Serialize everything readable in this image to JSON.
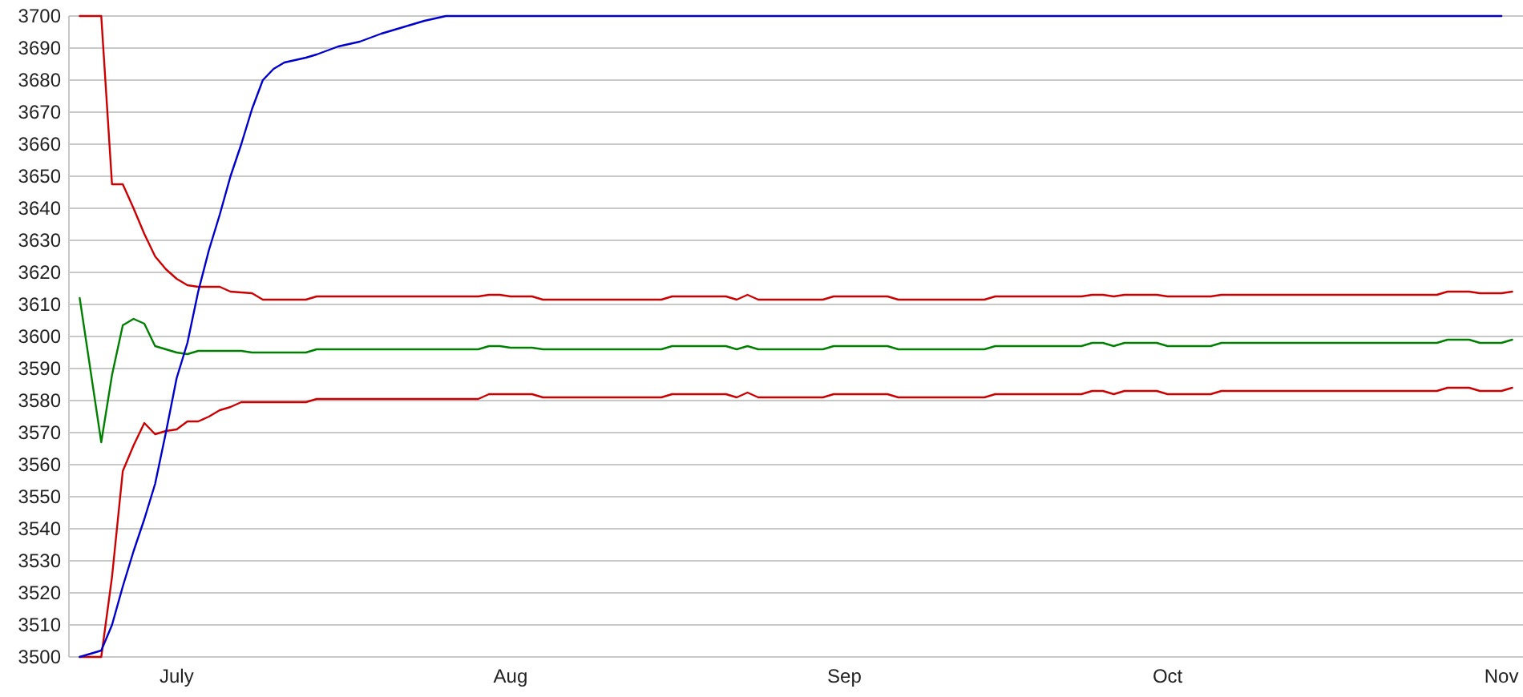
{
  "chart_data": {
    "type": "line",
    "xlim": [
      "--06-21",
      "--11-03"
    ],
    "xticks": [
      {
        "value": "--07-01",
        "label": "July"
      },
      {
        "value": "--08-01",
        "label": "Aug"
      },
      {
        "value": "--09-01",
        "label": "Sep"
      },
      {
        "value": "--10-01",
        "label": "Oct"
      },
      {
        "value": "--11-01",
        "label": "Nov"
      }
    ],
    "ylim": [
      3500,
      3700
    ],
    "yticks": [
      3500,
      3510,
      3520,
      3530,
      3540,
      3550,
      3560,
      3570,
      3580,
      3590,
      3600,
      3610,
      3620,
      3630,
      3640,
      3650,
      3660,
      3670,
      3680,
      3690,
      3700
    ],
    "grid": "y",
    "marker": "none",
    "line_style": "solid",
    "series": [
      {
        "color": "#cc0000",
        "x": [
          "--06-22",
          "--06-24",
          "--06-25",
          "--06-26",
          "--06-27",
          "--06-28",
          "--06-29",
          "--06-30",
          "--07-01",
          "--07-02",
          "--07-03",
          "--07-05",
          "--07-06",
          "--07-08",
          "--07-09",
          "--07-13",
          "--07-14",
          "--07-29",
          "--07-30",
          "--07-31",
          "--08-01",
          "--08-03",
          "--08-04",
          "--08-15",
          "--08-16",
          "--08-21",
          "--08-22",
          "--08-23",
          "--08-24",
          "--08-30",
          "--08-31",
          "--09-05",
          "--09-06",
          "--09-14",
          "--09-15",
          "--09-23",
          "--09-24",
          "--09-25",
          "--09-26",
          "--09-27",
          "--09-30",
          "--10-01",
          "--10-05",
          "--10-06",
          "--10-26",
          "--10-27",
          "--10-29",
          "--10-30",
          "--11-01",
          "--11-02"
        ],
        "values": [
          3700,
          3700,
          3647.5,
          3647.5,
          3640,
          3632,
          3625,
          3621,
          3618,
          3616,
          3615.5,
          3615.5,
          3614,
          3613.5,
          3611.5,
          3611.5,
          3612.5,
          3612.5,
          3613,
          3613,
          3612.5,
          3612.5,
          3611.5,
          3611.5,
          3612.5,
          3612.5,
          3611.5,
          3613,
          3611.5,
          3611.5,
          3612.5,
          3612.5,
          3611.5,
          3611.5,
          3612.5,
          3612.5,
          3613,
          3613,
          3612.5,
          3613,
          3613,
          3612.5,
          3612.5,
          3613,
          3613,
          3614,
          3614,
          3613.5,
          3613.5,
          3614
        ]
      },
      {
        "color": "#008000",
        "x": [
          "--06-22",
          "--06-24",
          "--06-25",
          "--06-26",
          "--06-27",
          "--06-28",
          "--06-29",
          "--06-30",
          "--07-01",
          "--07-02",
          "--07-03",
          "--07-07",
          "--07-08",
          "--07-13",
          "--07-14",
          "--07-29",
          "--07-30",
          "--07-31",
          "--08-01",
          "--08-03",
          "--08-04",
          "--08-15",
          "--08-16",
          "--08-21",
          "--08-22",
          "--08-23",
          "--08-24",
          "--08-30",
          "--08-31",
          "--09-05",
          "--09-06",
          "--09-14",
          "--09-15",
          "--09-23",
          "--09-24",
          "--09-25",
          "--09-26",
          "--09-27",
          "--09-30",
          "--10-01",
          "--10-05",
          "--10-06",
          "--10-26",
          "--10-27",
          "--10-29",
          "--10-30",
          "--11-01",
          "--11-02"
        ],
        "values": [
          3612,
          3567,
          3588,
          3603.5,
          3605.5,
          3604,
          3597,
          3596,
          3595,
          3594.5,
          3595.5,
          3595.5,
          3595,
          3595,
          3596,
          3596,
          3597,
          3597,
          3596.5,
          3596.5,
          3596,
          3596,
          3597,
          3597,
          3596,
          3597,
          3596,
          3596,
          3597,
          3597,
          3596,
          3596,
          3597,
          3597,
          3598,
          3598,
          3597,
          3598,
          3598,
          3597,
          3597,
          3598,
          3598,
          3599,
          3599,
          3598,
          3598,
          3599
        ]
      },
      {
        "color": "#cc0000",
        "x": [
          "--06-22",
          "--06-24",
          "--06-25",
          "--06-26",
          "--06-27",
          "--06-28",
          "--06-29",
          "--06-30",
          "--07-01",
          "--07-02",
          "--07-03",
          "--07-04",
          "--07-05",
          "--07-06",
          "--07-07",
          "--07-13",
          "--07-14",
          "--07-29",
          "--07-30",
          "--07-31",
          "--08-01",
          "--08-03",
          "--08-04",
          "--08-15",
          "--08-16",
          "--08-21",
          "--08-22",
          "--08-23",
          "--08-24",
          "--08-30",
          "--08-31",
          "--09-05",
          "--09-06",
          "--09-14",
          "--09-15",
          "--09-23",
          "--09-24",
          "--09-25",
          "--09-26",
          "--09-27",
          "--09-30",
          "--10-01",
          "--10-05",
          "--10-06",
          "--10-26",
          "--10-27",
          "--10-29",
          "--10-30",
          "--11-01",
          "--11-02"
        ],
        "values": [
          3500,
          3500,
          3525,
          3558,
          3566,
          3573,
          3569.5,
          3570.5,
          3571,
          3573.5,
          3573.5,
          3575,
          3577,
          3578,
          3579.5,
          3579.5,
          3580.5,
          3580.5,
          3582,
          3582,
          3582,
          3582,
          3581,
          3581,
          3582,
          3582,
          3581,
          3582.5,
          3581,
          3581,
          3582,
          3582,
          3581,
          3581,
          3582,
          3582,
          3583,
          3583,
          3582,
          3583,
          3583,
          3582,
          3582,
          3583,
          3583,
          3584,
          3584,
          3583,
          3583,
          3584
        ]
      },
      {
        "color": "#0000cc",
        "x": [
          "--06-22",
          "--06-24",
          "--06-25",
          "--06-26",
          "--06-27",
          "--06-28",
          "--06-29",
          "--06-30",
          "--07-01",
          "--07-02",
          "--07-03",
          "--07-04",
          "--07-05",
          "--07-06",
          "--07-07",
          "--07-08",
          "--07-09",
          "--07-10",
          "--07-11",
          "--07-13",
          "--07-14",
          "--07-16",
          "--07-18",
          "--07-20",
          "--07-22",
          "--07-24",
          "--07-26",
          "--11-01"
        ],
        "values": [
          3500,
          3502,
          3510,
          3522,
          3533,
          3543,
          3554,
          3570,
          3587,
          3598,
          3614,
          3627,
          3638,
          3650,
          3660,
          3671,
          3680,
          3683.5,
          3685.5,
          3687,
          3688,
          3690.5,
          3692,
          3694.5,
          3696.5,
          3698.5,
          3700,
          3700
        ]
      }
    ]
  }
}
